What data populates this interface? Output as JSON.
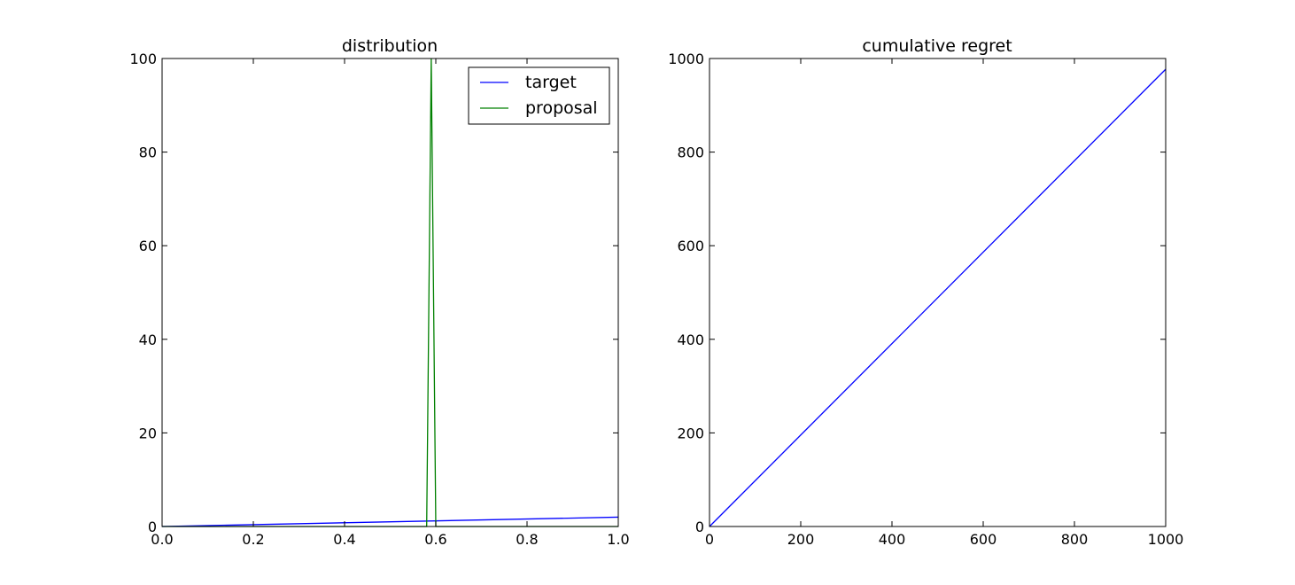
{
  "chart_data": [
    {
      "type": "line",
      "title": "distribution",
      "xlabel": "",
      "ylabel": "",
      "xlim": [
        0.0,
        1.0
      ],
      "ylim": [
        0,
        100
      ],
      "xticks": [
        "0.0",
        "0.2",
        "0.4",
        "0.6",
        "0.8",
        "1.0"
      ],
      "yticks": [
        "0",
        "20",
        "40",
        "60",
        "80",
        "100"
      ],
      "grid": false,
      "legend": {
        "placement": "upper right",
        "entries": [
          "target",
          "proposal"
        ]
      },
      "series": [
        {
          "name": "target",
          "color": "#0000ff",
          "x": [
            0.0,
            1.0
          ],
          "y": [
            0.0,
            2.0
          ]
        },
        {
          "name": "proposal",
          "color": "#008000",
          "x": [
            0.0,
            0.58,
            0.59,
            0.6,
            1.0
          ],
          "y": [
            0.0,
            0.0,
            100.0,
            0.0,
            0.0
          ]
        }
      ]
    },
    {
      "type": "line",
      "title": "cumulative regret",
      "xlabel": "",
      "ylabel": "",
      "xlim": [
        0,
        1000
      ],
      "ylim": [
        0,
        1000
      ],
      "xticks": [
        "0",
        "200",
        "400",
        "600",
        "800",
        "1000"
      ],
      "yticks": [
        "0",
        "200",
        "400",
        "600",
        "800",
        "1000"
      ],
      "grid": false,
      "series": [
        {
          "color": "#0000ff",
          "x": [
            0,
            1000
          ],
          "y": [
            0,
            977
          ]
        }
      ]
    }
  ]
}
